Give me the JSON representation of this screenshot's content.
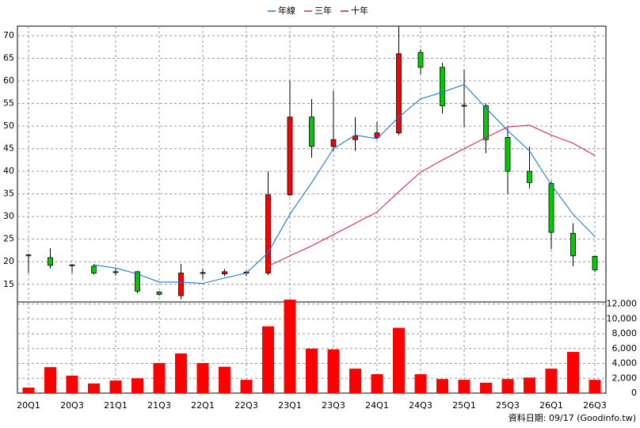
{
  "chart_data": {
    "type": "candlestick",
    "categories": [
      "20Q1",
      null,
      "20Q3",
      null,
      "21Q1",
      null,
      "21Q3",
      null,
      "22Q1",
      null,
      "22Q3",
      null,
      "23Q1",
      null,
      "23Q3",
      null,
      "24Q1",
      null,
      "24Q3",
      null,
      "25Q1",
      null,
      "25Q3",
      null,
      "26Q1",
      null,
      "26Q3"
    ],
    "open": [
      21.5,
      20.9,
      19.3,
      19.0,
      17.8,
      17.8,
      13.3,
      12.5,
      17.5,
      17.3,
      17.5,
      17.5,
      34.8,
      52.0,
      45.5,
      47.0,
      47.5,
      48.5,
      66.3,
      63.0,
      54.6,
      54.5,
      47.5,
      40.0,
      37.3,
      26.3,
      21.2
    ],
    "high": [
      21.8,
      23.0,
      19.5,
      19.5,
      18.5,
      18.0,
      13.5,
      19.5,
      18.5,
      18.4,
      18.0,
      40.0,
      60.0,
      56.0,
      57.8,
      52.0,
      51.0,
      72.0,
      67.0,
      64.0,
      62.5,
      55.0,
      49.5,
      45.5,
      37.8,
      28.5,
      21.3
    ],
    "low": [
      17.5,
      18.5,
      17.5,
      17.2,
      17.0,
      13.0,
      12.5,
      11.7,
      16.2,
      16.8,
      16.8,
      17.0,
      34.5,
      43.0,
      44.5,
      44.5,
      47.0,
      48.0,
      61.5,
      52.8,
      49.8,
      44.0,
      35.0,
      36.2,
      22.8,
      19.0,
      17.7
    ],
    "close": [
      21.3,
      19.2,
      19.2,
      17.5,
      17.6,
      13.5,
      12.8,
      17.5,
      17.6,
      17.8,
      17.7,
      34.8,
      52.0,
      45.5,
      47.0,
      47.8,
      48.5,
      66.0,
      63.0,
      54.5,
      54.4,
      47.0,
      40.0,
      37.5,
      26.5,
      21.3,
      18.2
    ],
    "up_color": "#ff0000",
    "down_color": "#00cc00",
    "ylim": [
      11.1,
      72.1
    ],
    "yticks": [
      15,
      20,
      25,
      30,
      35,
      40,
      45,
      50,
      55,
      60,
      65,
      70
    ],
    "series": [
      {
        "name": "年線",
        "color": "#1f78d4",
        "values": [
          null,
          null,
          null,
          19.3,
          18.6,
          17.3,
          15.5,
          15.5,
          15.2,
          16.4,
          17.5,
          22.0,
          30.5,
          37.5,
          45.0,
          48.0,
          47.2,
          52.0,
          56.0,
          57.5,
          59.2,
          54.0,
          49.0,
          44.5,
          37.0,
          30.5,
          25.6
        ]
      },
      {
        "name": "三年",
        "color": "#d6246e",
        "values": [
          null,
          null,
          null,
          null,
          null,
          null,
          null,
          null,
          null,
          null,
          null,
          19.0,
          21.3,
          23.5,
          26.0,
          28.5,
          31.0,
          35.5,
          39.8,
          42.5,
          45.0,
          47.5,
          49.8,
          50.2,
          48.0,
          46.2,
          43.5
        ]
      },
      {
        "name": "十年",
        "color": "#a0206a",
        "values": [
          null,
          null,
          null,
          null,
          null,
          null,
          null,
          null,
          null,
          null,
          null,
          null,
          null,
          null,
          null,
          null,
          null,
          null,
          null,
          null,
          null,
          null,
          null,
          null,
          null,
          null,
          null
        ]
      }
    ],
    "volume": {
      "color": "#ff0000",
      "values": [
        750,
        3500,
        2350,
        1300,
        1700,
        2000,
        4050,
        5350,
        4050,
        3550,
        1800,
        9000,
        12600,
        6000,
        5900,
        3300,
        2550,
        8800,
        2550,
        1900,
        1800,
        1400,
        1900,
        2100,
        3300,
        5550,
        1800
      ],
      "ylim": [
        0,
        12600
      ],
      "yticks": [
        0,
        {
          "value": 2000,
          "label": "2,000"
        },
        {
          "value": 4000,
          "label": "4,000"
        },
        {
          "value": 6000,
          "label": "6,000"
        },
        {
          "value": 8000,
          "label": "8,000"
        },
        {
          "value": 10000,
          "label": "10,000"
        },
        {
          "value": 12000,
          "label": "12,000"
        }
      ]
    },
    "grid": true,
    "note": "資料日期: 09/17 (Goodinfo.tw)"
  }
}
